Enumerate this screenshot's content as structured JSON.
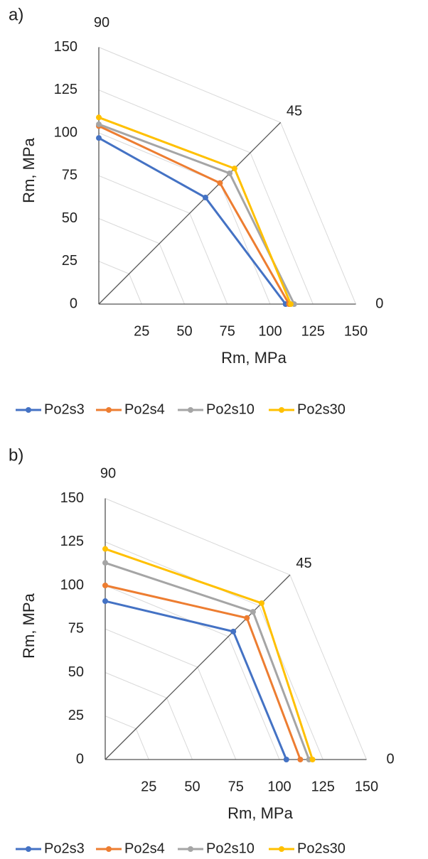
{
  "chart_data": [
    {
      "type": "radar",
      "panel": "a)",
      "xlabel": "Rm, MPa",
      "ylabel": "Rm, MPa",
      "categories": [
        "0",
        "45",
        "90"
      ],
      "rlim": [
        0,
        150
      ],
      "rticks": [
        0,
        25,
        50,
        75,
        100,
        125,
        150
      ],
      "grid": true,
      "legend": "bottom",
      "series": [
        {
          "name": "Po2s3",
          "color": "#4472c4",
          "values": [
            109,
            88,
            97
          ]
        },
        {
          "name": "Po2s4",
          "color": "#ed7d31",
          "values": [
            111,
            100,
            104
          ]
        },
        {
          "name": "Po2s10",
          "color": "#a5a5a5",
          "values": [
            114,
            108,
            105
          ]
        },
        {
          "name": "Po2s30",
          "color": "#ffc000",
          "values": [
            112,
            112,
            109
          ]
        }
      ]
    },
    {
      "type": "radar",
      "panel": "b)",
      "xlabel": "Rm, MPa",
      "ylabel": "Rm, MPa",
      "categories": [
        "0",
        "45",
        "90"
      ],
      "rlim": [
        0,
        150
      ],
      "rticks": [
        0,
        25,
        50,
        75,
        100,
        125,
        150
      ],
      "grid": true,
      "legend": "bottom",
      "series": [
        {
          "name": "Po2s3",
          "color": "#4472c4",
          "values": [
            104,
            104,
            91
          ]
        },
        {
          "name": "Po2s4",
          "color": "#ed7d31",
          "values": [
            112,
            115,
            100
          ]
        },
        {
          "name": "Po2s10",
          "color": "#a5a5a5",
          "values": [
            117,
            120,
            113
          ]
        },
        {
          "name": "Po2s30",
          "color": "#ffc000",
          "values": [
            119,
            127,
            121
          ]
        }
      ]
    }
  ]
}
